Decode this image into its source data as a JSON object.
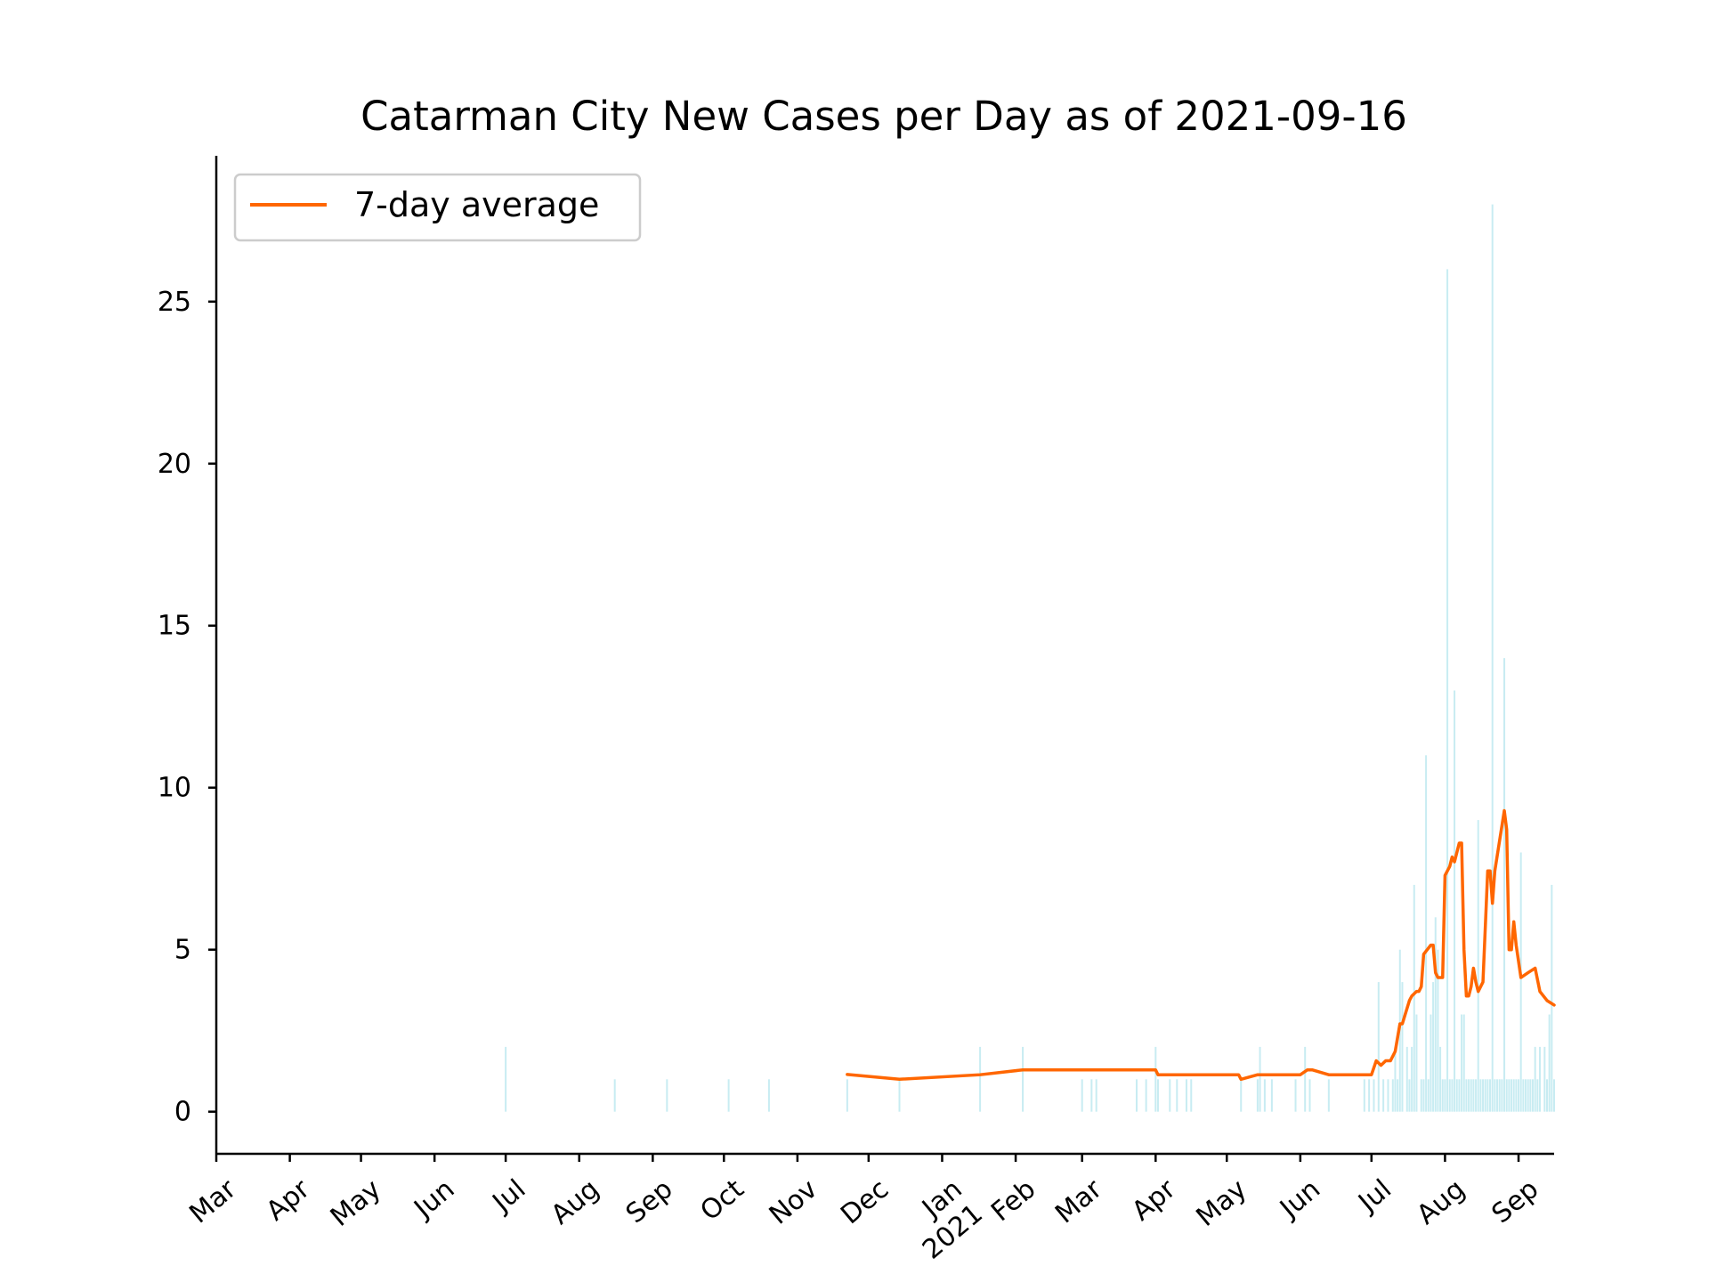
{
  "chart_data": {
    "type": "bar+line",
    "title": "Catarman City New Cases per Day as of 2021-09-16",
    "xlabel": "",
    "ylabel": "",
    "x_axis": {
      "type": "date",
      "range": [
        "2020-03-01",
        "2021-09-16"
      ],
      "ticks": [
        {
          "date": "2020-03-01",
          "label": "Mar"
        },
        {
          "date": "2020-04-01",
          "label": "Apr"
        },
        {
          "date": "2020-05-01",
          "label": "May"
        },
        {
          "date": "2020-06-01",
          "label": "Jun"
        },
        {
          "date": "2020-07-01",
          "label": "Jul"
        },
        {
          "date": "2020-08-01",
          "label": "Aug"
        },
        {
          "date": "2020-09-01",
          "label": "Sep"
        },
        {
          "date": "2020-10-01",
          "label": "Oct"
        },
        {
          "date": "2020-11-01",
          "label": "Nov"
        },
        {
          "date": "2020-12-01",
          "label": "Dec"
        },
        {
          "date": "2021-01-01",
          "label": "Jan\n2021"
        },
        {
          "date": "2021-02-01",
          "label": "Feb"
        },
        {
          "date": "2021-03-01",
          "label": "Mar"
        },
        {
          "date": "2021-04-01",
          "label": "Apr"
        },
        {
          "date": "2021-05-01",
          "label": "May"
        },
        {
          "date": "2021-06-01",
          "label": "Jun"
        },
        {
          "date": "2021-07-01",
          "label": "Jul"
        },
        {
          "date": "2021-08-01",
          "label": "Aug"
        },
        {
          "date": "2021-09-01",
          "label": "Sep"
        }
      ]
    },
    "y_axis": {
      "range": [
        -1.3,
        29.5
      ],
      "ticks": [
        {
          "value": 0,
          "label": "0"
        },
        {
          "value": 5,
          "label": "5"
        },
        {
          "value": 10,
          "label": "10"
        },
        {
          "value": 15,
          "label": "15"
        },
        {
          "value": 20,
          "label": "20"
        },
        {
          "value": 25,
          "label": "25"
        }
      ]
    },
    "grid": false,
    "legend": {
      "position": "top-left",
      "entries": [
        {
          "label": "7-day average",
          "color": "#ff6600"
        }
      ]
    },
    "bar_color": "#c8ecf2",
    "line_color": "#ff6600",
    "series": [
      {
        "kind": "bar",
        "points": [
          [
            "2020-07-01",
            2
          ],
          [
            "2020-08-16",
            1
          ],
          [
            "2020-09-07",
            1
          ],
          [
            "2020-10-03",
            1
          ],
          [
            "2020-10-20",
            1
          ],
          [
            "2020-11-22",
            1
          ],
          [
            "2020-12-14",
            1
          ],
          [
            "2021-01-17",
            2
          ],
          [
            "2021-02-04",
            2
          ],
          [
            "2021-03-01",
            1
          ],
          [
            "2021-03-05",
            1
          ],
          [
            "2021-03-07",
            1
          ],
          [
            "2021-03-24",
            1
          ],
          [
            "2021-03-28",
            1
          ],
          [
            "2021-04-01",
            2
          ],
          [
            "2021-04-02",
            1
          ],
          [
            "2021-04-07",
            1
          ],
          [
            "2021-04-10",
            1
          ],
          [
            "2021-04-14",
            1
          ],
          [
            "2021-04-16",
            1
          ],
          [
            "2021-05-07",
            1
          ],
          [
            "2021-05-14",
            1
          ],
          [
            "2021-05-15",
            2
          ],
          [
            "2021-05-17",
            1
          ],
          [
            "2021-05-20",
            1
          ],
          [
            "2021-05-30",
            1
          ],
          [
            "2021-06-03",
            2
          ],
          [
            "2021-06-05",
            1
          ],
          [
            "2021-06-13",
            1
          ],
          [
            "2021-06-28",
            1
          ],
          [
            "2021-06-30",
            1
          ],
          [
            "2021-07-02",
            1
          ],
          [
            "2021-07-04",
            4
          ],
          [
            "2021-07-06",
            1
          ],
          [
            "2021-07-08",
            1
          ],
          [
            "2021-07-10",
            1
          ],
          [
            "2021-07-11",
            2
          ],
          [
            "2021-07-12",
            1
          ],
          [
            "2021-07-13",
            5
          ],
          [
            "2021-07-14",
            4
          ],
          [
            "2021-07-16",
            2
          ],
          [
            "2021-07-17",
            1
          ],
          [
            "2021-07-18",
            2
          ],
          [
            "2021-07-19",
            7
          ],
          [
            "2021-07-20",
            3
          ],
          [
            "2021-07-22",
            1
          ],
          [
            "2021-07-23",
            1
          ],
          [
            "2021-07-24",
            11
          ],
          [
            "2021-07-25",
            1
          ],
          [
            "2021-07-26",
            3
          ],
          [
            "2021-07-27",
            4
          ],
          [
            "2021-07-28",
            6
          ],
          [
            "2021-07-29",
            5
          ],
          [
            "2021-07-30",
            2
          ],
          [
            "2021-07-31",
            1
          ],
          [
            "2021-08-01",
            1
          ],
          [
            "2021-08-02",
            26
          ],
          [
            "2021-08-03",
            1
          ],
          [
            "2021-08-04",
            1
          ],
          [
            "2021-08-05",
            13
          ],
          [
            "2021-08-06",
            1
          ],
          [
            "2021-08-07",
            1
          ],
          [
            "2021-08-08",
            3
          ],
          [
            "2021-08-09",
            3
          ],
          [
            "2021-08-10",
            1
          ],
          [
            "2021-08-11",
            1
          ],
          [
            "2021-08-12",
            1
          ],
          [
            "2021-08-13",
            1
          ],
          [
            "2021-08-14",
            1
          ],
          [
            "2021-08-15",
            9
          ],
          [
            "2021-08-16",
            1
          ],
          [
            "2021-08-17",
            1
          ],
          [
            "2021-08-18",
            1
          ],
          [
            "2021-08-19",
            1
          ],
          [
            "2021-08-20",
            1
          ],
          [
            "2021-08-21",
            28
          ],
          [
            "2021-08-22",
            1
          ],
          [
            "2021-08-23",
            1
          ],
          [
            "2021-08-24",
            1
          ],
          [
            "2021-08-25",
            1
          ],
          [
            "2021-08-26",
            14
          ],
          [
            "2021-08-27",
            1
          ],
          [
            "2021-08-28",
            1
          ],
          [
            "2021-08-29",
            1
          ],
          [
            "2021-08-30",
            1
          ],
          [
            "2021-08-31",
            1
          ],
          [
            "2021-09-01",
            1
          ],
          [
            "2021-09-02",
            8
          ],
          [
            "2021-09-03",
            1
          ],
          [
            "2021-09-04",
            1
          ],
          [
            "2021-09-05",
            1
          ],
          [
            "2021-09-06",
            1
          ],
          [
            "2021-09-07",
            1
          ],
          [
            "2021-09-08",
            2
          ],
          [
            "2021-09-09",
            1
          ],
          [
            "2021-09-10",
            2
          ],
          [
            "2021-09-12",
            2
          ],
          [
            "2021-09-13",
            1
          ],
          [
            "2021-09-14",
            3
          ],
          [
            "2021-09-15",
            7
          ],
          [
            "2021-09-16",
            1
          ]
        ]
      },
      {
        "kind": "line",
        "name": "7-day average",
        "points": [
          [
            "2020-11-22",
            1.15
          ],
          [
            "2020-12-14",
            1.0
          ],
          [
            "2021-01-17",
            1.14
          ],
          [
            "2021-02-04",
            1.29
          ],
          [
            "2021-04-01",
            1.29
          ],
          [
            "2021-04-02",
            1.14
          ],
          [
            "2021-05-06",
            1.14
          ],
          [
            "2021-05-07",
            1.0
          ],
          [
            "2021-05-14",
            1.14
          ],
          [
            "2021-06-01",
            1.14
          ],
          [
            "2021-06-04",
            1.29
          ],
          [
            "2021-06-06",
            1.29
          ],
          [
            "2021-06-13",
            1.14
          ],
          [
            "2021-07-01",
            1.14
          ],
          [
            "2021-07-03",
            1.57
          ],
          [
            "2021-07-05",
            1.43
          ],
          [
            "2021-07-07",
            1.57
          ],
          [
            "2021-07-09",
            1.57
          ],
          [
            "2021-07-11",
            1.86
          ],
          [
            "2021-07-13",
            2.71
          ],
          [
            "2021-07-14",
            2.71
          ],
          [
            "2021-07-17",
            3.43
          ],
          [
            "2021-07-18",
            3.57
          ],
          [
            "2021-07-20",
            3.71
          ],
          [
            "2021-07-21",
            3.71
          ],
          [
            "2021-07-22",
            3.86
          ],
          [
            "2021-07-23",
            4.86
          ],
          [
            "2021-07-26",
            5.14
          ],
          [
            "2021-07-27",
            5.14
          ],
          [
            "2021-07-28",
            4.29
          ],
          [
            "2021-07-29",
            4.14
          ],
          [
            "2021-07-31",
            4.14
          ],
          [
            "2021-08-01",
            7.29
          ],
          [
            "2021-08-03",
            7.57
          ],
          [
            "2021-08-04",
            7.86
          ],
          [
            "2021-08-05",
            7.71
          ],
          [
            "2021-08-07",
            8.29
          ],
          [
            "2021-08-08",
            8.29
          ],
          [
            "2021-08-09",
            5.0
          ],
          [
            "2021-08-10",
            3.57
          ],
          [
            "2021-08-11",
            3.57
          ],
          [
            "2021-08-12",
            3.86
          ],
          [
            "2021-08-13",
            4.43
          ],
          [
            "2021-08-14",
            4.0
          ],
          [
            "2021-08-15",
            3.71
          ],
          [
            "2021-08-17",
            4.0
          ],
          [
            "2021-08-19",
            7.43
          ],
          [
            "2021-08-20",
            7.43
          ],
          [
            "2021-08-21",
            6.43
          ],
          [
            "2021-08-22",
            7.43
          ],
          [
            "2021-08-26",
            9.29
          ],
          [
            "2021-08-27",
            8.71
          ],
          [
            "2021-08-28",
            5.0
          ],
          [
            "2021-08-29",
            5.0
          ],
          [
            "2021-08-30",
            5.86
          ],
          [
            "2021-08-31",
            5.14
          ],
          [
            "2021-09-02",
            4.14
          ],
          [
            "2021-09-05",
            4.29
          ],
          [
            "2021-09-08",
            4.43
          ],
          [
            "2021-09-10",
            3.71
          ],
          [
            "2021-09-13",
            3.43
          ],
          [
            "2021-09-16",
            3.29
          ]
        ]
      }
    ]
  }
}
